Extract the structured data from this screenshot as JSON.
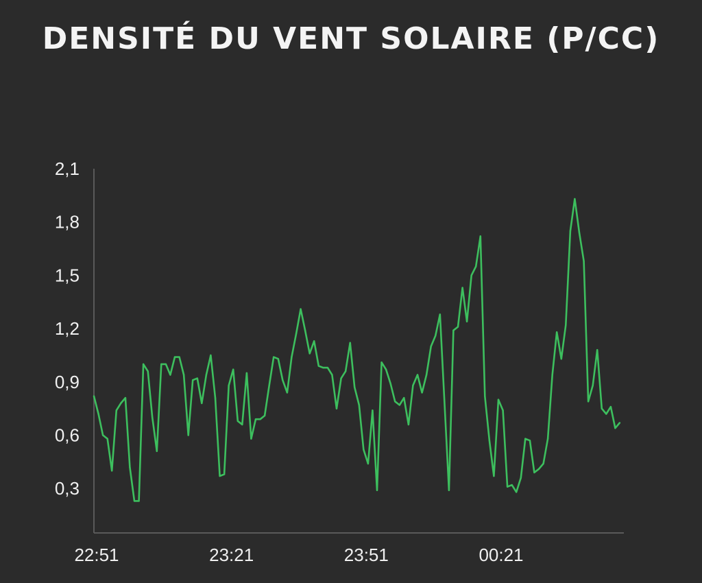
{
  "chart_data": {
    "type": "line",
    "title": "DENSITÉ DU VENT SOLAIRE (P/CC)",
    "xlabel": "",
    "ylabel": "",
    "x_ticks": [
      "22:51",
      "23:21",
      "23:51",
      "00:21"
    ],
    "y_ticks": [
      "0,3",
      "0,6",
      "0,9",
      "1,2",
      "1,5",
      "1,8",
      "2,1"
    ],
    "ylim": [
      0.05,
      2.1
    ],
    "grid": false,
    "series": [
      {
        "color": "#3dbf5e",
        "x": [
          "22:51",
          "22:52",
          "22:53",
          "22:54",
          "22:55",
          "22:56",
          "22:57",
          "22:58",
          "22:59",
          "23:00",
          "23:01",
          "23:02",
          "23:03",
          "23:04",
          "23:05",
          "23:06",
          "23:07",
          "23:08",
          "23:09",
          "23:10",
          "23:11",
          "23:12",
          "23:13",
          "23:14",
          "23:15",
          "23:16",
          "23:17",
          "23:18",
          "23:19",
          "23:20",
          "23:21",
          "23:22",
          "23:23",
          "23:24",
          "23:25",
          "23:26",
          "23:27",
          "23:28",
          "23:29",
          "23:30",
          "23:31",
          "23:32",
          "23:33",
          "23:34",
          "23:35",
          "23:36",
          "23:37",
          "23:38",
          "23:39",
          "23:40",
          "23:41",
          "23:42",
          "23:43",
          "23:44",
          "23:45",
          "23:46",
          "23:47",
          "23:48",
          "23:49",
          "23:50",
          "23:51",
          "23:52",
          "23:53",
          "23:54",
          "23:55",
          "23:56",
          "23:57",
          "23:58",
          "23:59",
          "00:00",
          "00:01",
          "00:02",
          "00:03",
          "00:04",
          "00:05",
          "00:06",
          "00:07",
          "00:08",
          "00:09",
          "00:10",
          "00:11",
          "00:12",
          "00:13",
          "00:14",
          "00:15",
          "00:16",
          "00:17",
          "00:18",
          "00:19",
          "00:20",
          "00:21",
          "00:22",
          "00:23",
          "00:24",
          "00:25",
          "00:26",
          "00:27",
          "00:28",
          "00:29",
          "00:30",
          "00:31",
          "00:32",
          "00:33",
          "00:34",
          "00:35",
          "00:36",
          "00:37",
          "00:38",
          "00:39",
          "00:40",
          "00:41",
          "00:42",
          "00:43",
          "00:44",
          "00:45",
          "00:46",
          "00:47",
          "00:48"
        ],
        "values": [
          0.82,
          0.72,
          0.6,
          0.58,
          0.4,
          0.74,
          0.78,
          0.81,
          0.42,
          0.23,
          0.23,
          1.0,
          0.96,
          0.7,
          0.51,
          1.0,
          1.0,
          0.94,
          1.04,
          1.04,
          0.94,
          0.6,
          0.91,
          0.92,
          0.78,
          0.94,
          1.05,
          0.81,
          0.37,
          0.38,
          0.88,
          0.97,
          0.68,
          0.66,
          0.95,
          0.58,
          0.69,
          0.69,
          0.71,
          0.88,
          1.04,
          1.03,
          0.91,
          0.84,
          1.04,
          1.17,
          1.31,
          1.19,
          1.06,
          1.13,
          0.99,
          0.98,
          0.98,
          0.94,
          0.75,
          0.92,
          0.96,
          1.12,
          0.87,
          0.77,
          0.52,
          0.44,
          0.74,
          0.29,
          1.01,
          0.97,
          0.89,
          0.79,
          0.77,
          0.81,
          0.66,
          0.88,
          0.94,
          0.84,
          0.94,
          1.1,
          1.16,
          1.28,
          0.79,
          0.29,
          1.19,
          1.21,
          1.43,
          1.24,
          1.5,
          1.55,
          1.72,
          0.82,
          0.57,
          0.37,
          0.8,
          0.74,
          0.31,
          0.32,
          0.28,
          0.36,
          0.58,
          0.57,
          0.39,
          0.41,
          0.44,
          0.58,
          0.94,
          1.18,
          1.03,
          1.22,
          1.75,
          1.93,
          1.74,
          1.58,
          0.79,
          0.88,
          1.08,
          0.75,
          0.72,
          0.76,
          0.64,
          0.67
        ]
      }
    ]
  }
}
